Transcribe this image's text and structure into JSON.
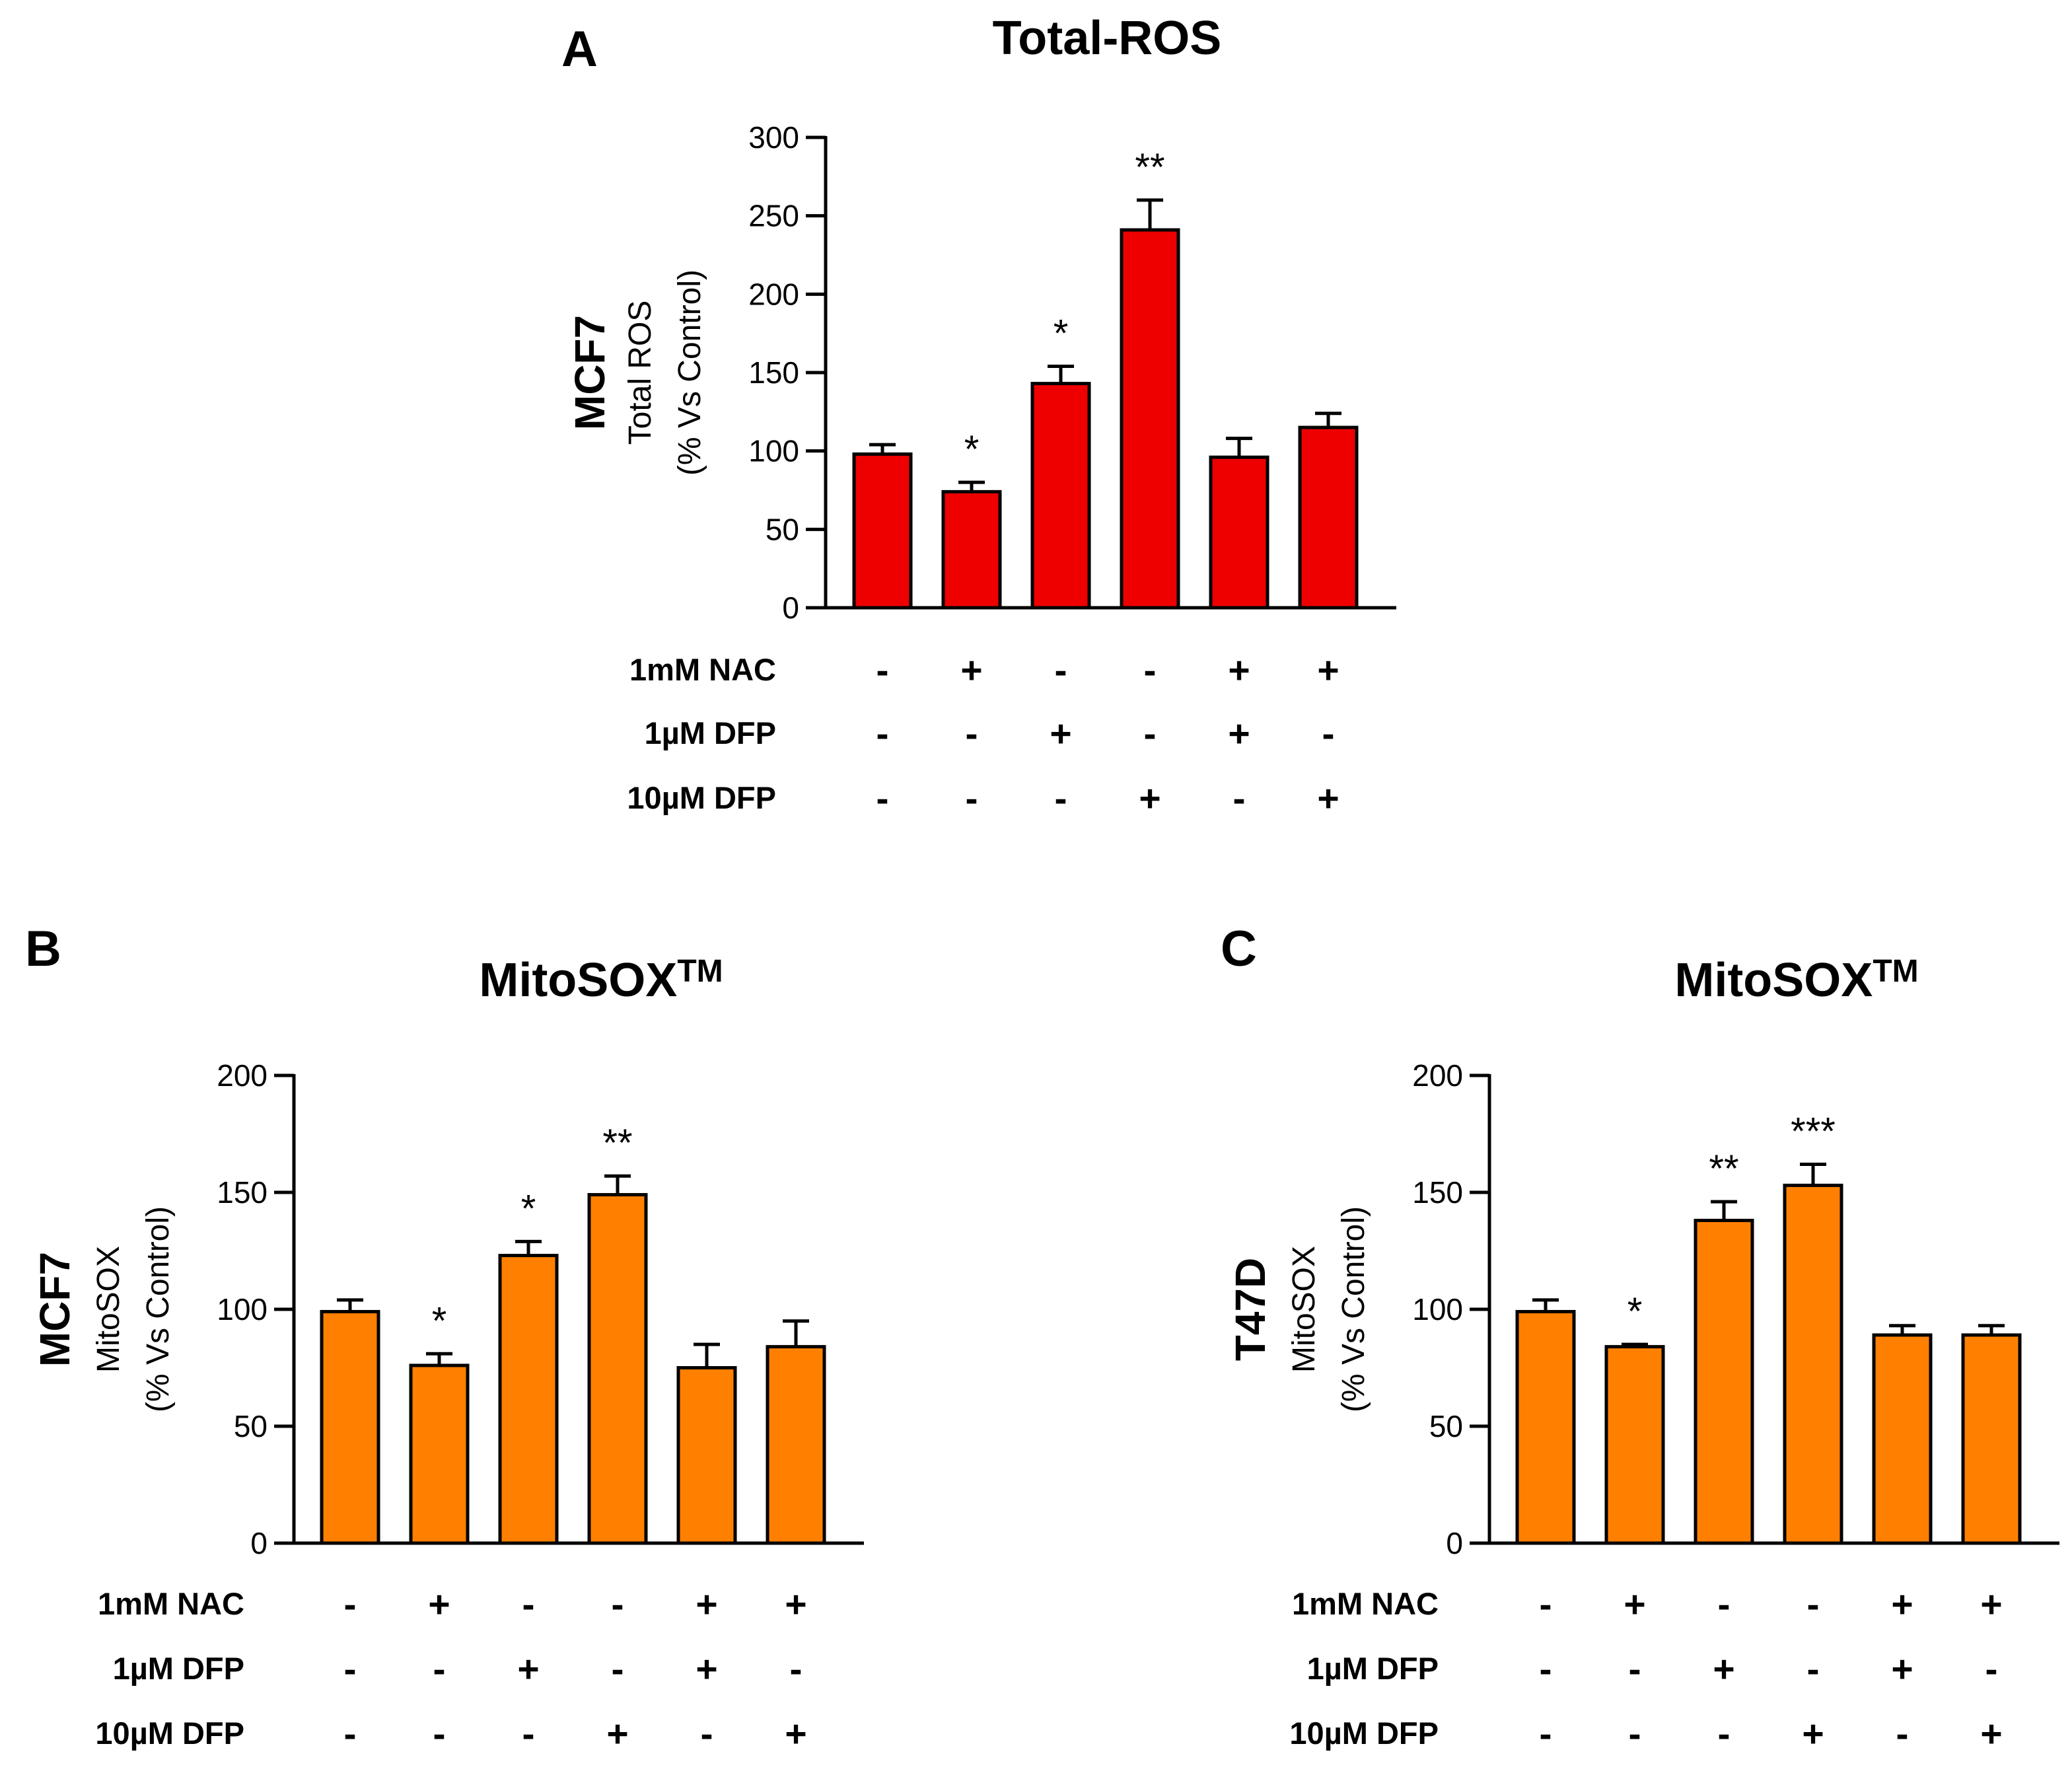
{
  "figure": {
    "panels": [
      {
        "letter": "A"
      },
      {
        "letter": "B"
      },
      {
        "letter": "C"
      }
    ]
  },
  "chart_data": [
    {
      "type": "bar",
      "panel": "A",
      "title": "Total-ROS",
      "cell_line": "MCF7",
      "ylabel_lines": [
        "Total ROS",
        "(% Vs Control)"
      ],
      "ylim": [
        0,
        300
      ],
      "yticks": [
        0,
        50,
        100,
        150,
        200,
        250,
        300
      ],
      "values": [
        98,
        74,
        143,
        241,
        96,
        115
      ],
      "errors": [
        6,
        6,
        11,
        19,
        12,
        9
      ],
      "significance": [
        "",
        "*",
        "*",
        "**",
        "",
        ""
      ],
      "bar_color": "#ee0000",
      "treatments": [
        {
          "label": "1mM NAC",
          "signs": [
            "-",
            "+",
            "-",
            "-",
            "+",
            "+"
          ]
        },
        {
          "label": "1µM DFP",
          "signs": [
            "-",
            "-",
            "+",
            "-",
            "+",
            "-"
          ]
        },
        {
          "label": "10µM DFP",
          "signs": [
            "-",
            "-",
            "-",
            "+",
            "-",
            "+"
          ]
        }
      ]
    },
    {
      "type": "bar",
      "panel": "B",
      "title": "MitoSOX",
      "title_sup": "TM",
      "cell_line": "MCF7",
      "ylabel_lines": [
        "MitoSOX",
        "(% Vs Control)"
      ],
      "ylim": [
        0,
        200
      ],
      "yticks": [
        0,
        50,
        100,
        150,
        200
      ],
      "values": [
        99,
        76,
        123,
        149,
        75,
        84
      ],
      "errors": [
        5,
        5,
        6,
        8,
        10,
        11
      ],
      "significance": [
        "",
        "*",
        "*",
        "**",
        "",
        ""
      ],
      "bar_color": "#ff8000",
      "treatments": [
        {
          "label": "1mM NAC",
          "signs": [
            "-",
            "+",
            "-",
            "-",
            "+",
            "+"
          ]
        },
        {
          "label": "1µM DFP",
          "signs": [
            "-",
            "-",
            "+",
            "-",
            "+",
            "-"
          ]
        },
        {
          "label": "10µM DFP",
          "signs": [
            "-",
            "-",
            "-",
            "+",
            "-",
            "+"
          ]
        }
      ]
    },
    {
      "type": "bar",
      "panel": "C",
      "title": "MitoSOX",
      "title_sup": "TM",
      "cell_line": "T47D",
      "ylabel_lines": [
        "MitoSOX",
        "(% Vs Control)"
      ],
      "ylim": [
        0,
        200
      ],
      "yticks": [
        0,
        50,
        100,
        150,
        200
      ],
      "values": [
        99,
        84,
        138,
        153,
        89,
        89
      ],
      "errors": [
        5,
        1,
        8,
        9,
        4,
        4
      ],
      "significance": [
        "",
        "*",
        "**",
        "***",
        "",
        ""
      ],
      "bar_color": "#ff8000",
      "treatments": [
        {
          "label": "1mM NAC",
          "signs": [
            "-",
            "+",
            "-",
            "-",
            "+",
            "+"
          ]
        },
        {
          "label": "1µM DFP",
          "signs": [
            "-",
            "-",
            "+",
            "-",
            "+",
            "-"
          ]
        },
        {
          "label": "10µM DFP",
          "signs": [
            "-",
            "-",
            "-",
            "+",
            "-",
            "+"
          ]
        }
      ]
    }
  ]
}
